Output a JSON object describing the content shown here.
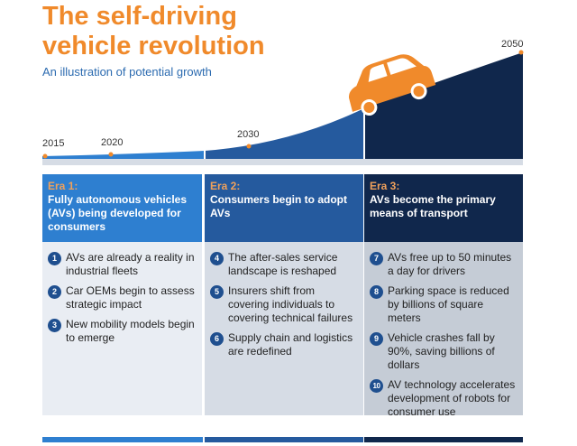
{
  "title_line1": "The self-driving",
  "title_line2": "vehicle revolution",
  "subtitle": "An illustration of potential growth",
  "timeline": {
    "years": [
      "2015",
      "2020",
      "2030",
      "2050"
    ],
    "colors": {
      "light": "#2e7fd0",
      "mid": "#255a9e",
      "dark": "#10274c",
      "car": "#f08a2b"
    }
  },
  "eras": [
    {
      "era": "Era 1:",
      "title": "Fully autonomous vehicles (AVs) being developed for consumers",
      "items": [
        {
          "num": "1",
          "text": "AVs are already a reality in industrial fleets"
        },
        {
          "num": "2",
          "text": "Car OEMs begin to assess strategic impact"
        },
        {
          "num": "3",
          "text": "New mobility models begin to emerge"
        }
      ]
    },
    {
      "era": "Era 2:",
      "title": "Consumers begin to adopt AVs",
      "items": [
        {
          "num": "4",
          "text": "The after-sales service landscape is reshaped"
        },
        {
          "num": "5",
          "text": "Insurers shift from covering individuals to covering technical failures"
        },
        {
          "num": "6",
          "text": "Supply chain and logistics are redefined"
        }
      ]
    },
    {
      "era": "Era 3:",
      "title": "AVs become the primary means of transport",
      "items": [
        {
          "num": "7",
          "text": "AVs free up to 50 minutes a day for drivers"
        },
        {
          "num": "8",
          "text": "Parking space is reduced by billions of square meters"
        },
        {
          "num": "9",
          "text": "Vehicle crashes fall by 90%, saving billions of dollars"
        },
        {
          "num": "10",
          "text": "AV technology accelerates development of robots for consumer use"
        }
      ]
    }
  ]
}
